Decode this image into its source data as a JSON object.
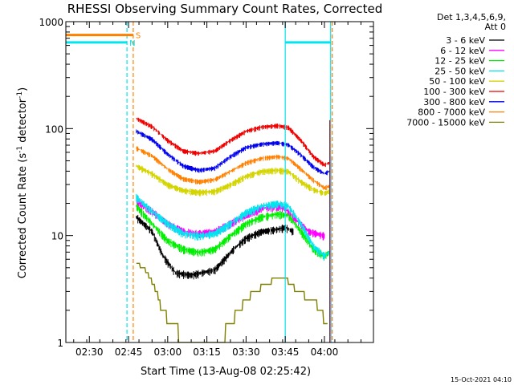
{
  "chart_data": {
    "type": "line",
    "title": "RHESSI Observing Summary Count Rates, Corrected",
    "xlabel": "Start Time (13-Aug-08 02:25:42)",
    "ylabel_main": "Corrected Count Rate (s",
    "ylabel_sup1": "-1",
    "ylabel_mid": " detector",
    "ylabel_sup2": "-1",
    "ylabel_end": ")",
    "yscale": "log",
    "ylim": [
      1,
      1000
    ],
    "xlim": [
      2.35,
      4.313
    ],
    "x_unit": "hours UT",
    "x_ticks": [
      {
        "value": 2.5,
        "label": "02:30"
      },
      {
        "value": 2.75,
        "label": "02:45"
      },
      {
        "value": 3.0,
        "label": "03:00"
      },
      {
        "value": 3.25,
        "label": "03:15"
      },
      {
        "value": 3.5,
        "label": "03:30"
      },
      {
        "value": 3.75,
        "label": "03:45"
      },
      {
        "value": 4.0,
        "label": "04:00"
      }
    ],
    "y_ticks": [
      {
        "value": 1,
        "label": "1"
      },
      {
        "value": 10,
        "label": "10"
      },
      {
        "value": 100,
        "label": "100"
      },
      {
        "value": 1000,
        "label": "1000"
      }
    ],
    "legend": {
      "header1": "Det 1,3,4,5,6,9,",
      "header2": "Att 0",
      "placement": "right-outside",
      "entries": [
        {
          "label": "3 - 6 keV",
          "color": "#000000"
        },
        {
          "label": "6 - 12 keV",
          "color": "#ff00ff"
        },
        {
          "label": "12 - 25 keV",
          "color": "#00ee00"
        },
        {
          "label": "25 - 50 keV",
          "color": "#00e5ee"
        },
        {
          "label": "50 - 100 keV",
          "color": "#d4d400"
        },
        {
          "label": "100 - 300 keV",
          "color": "#ee0000"
        },
        {
          "label": "300 - 800 keV",
          "color": "#0000ee"
        },
        {
          "label": "800 - 7000 keV",
          "color": "#ff8000"
        },
        {
          "label": "7000 - 15000 keV",
          "color": "#808000"
        }
      ]
    },
    "series": [
      {
        "name": "3 - 6 keV",
        "color": "#000000",
        "noise": 0.05,
        "points": [
          [
            2.8,
            15
          ],
          [
            2.9,
            11
          ],
          [
            2.97,
            6.5
          ],
          [
            3.05,
            4.5
          ],
          [
            3.15,
            4.3
          ],
          [
            3.3,
            4.8
          ],
          [
            3.42,
            7.5
          ],
          [
            3.5,
            9.5
          ],
          [
            3.6,
            11
          ],
          [
            3.7,
            11.5
          ],
          [
            3.75,
            12
          ],
          [
            3.8,
            11
          ]
        ]
      },
      {
        "name": "6 - 12 keV",
        "color": "#ff00ff",
        "noise": 0.05,
        "points": [
          [
            2.8,
            21
          ],
          [
            2.9,
            17
          ],
          [
            3.0,
            13
          ],
          [
            3.1,
            11
          ],
          [
            3.2,
            10.5
          ],
          [
            3.3,
            11
          ],
          [
            3.4,
            13
          ],
          [
            3.5,
            15.5
          ],
          [
            3.6,
            18
          ],
          [
            3.7,
            19
          ],
          [
            3.75,
            18
          ],
          [
            3.82,
            14
          ],
          [
            3.9,
            11
          ],
          [
            4.0,
            10
          ]
        ]
      },
      {
        "name": "12 - 25 keV",
        "color": "#00ee00",
        "noise": 0.05,
        "points": [
          [
            2.8,
            19
          ],
          [
            2.9,
            13
          ],
          [
            3.0,
            9
          ],
          [
            3.1,
            7.5
          ],
          [
            3.2,
            7
          ],
          [
            3.3,
            7.5
          ],
          [
            3.4,
            10
          ],
          [
            3.5,
            13
          ],
          [
            3.6,
            15
          ],
          [
            3.7,
            16
          ],
          [
            3.77,
            15.5
          ],
          [
            3.85,
            11
          ],
          [
            3.93,
            7.5
          ],
          [
            4.0,
            6.5
          ],
          [
            4.03,
            7
          ]
        ]
      },
      {
        "name": "25 - 50 keV",
        "color": "#00e5ee",
        "noise": 0.05,
        "points": [
          [
            2.8,
            23
          ],
          [
            2.9,
            17
          ],
          [
            3.0,
            13
          ],
          [
            3.1,
            10.5
          ],
          [
            3.2,
            10
          ],
          [
            3.3,
            10.5
          ],
          [
            3.4,
            13
          ],
          [
            3.5,
            16.5
          ],
          [
            3.6,
            19
          ],
          [
            3.7,
            20
          ],
          [
            3.77,
            19
          ],
          [
            3.85,
            13
          ],
          [
            3.93,
            8
          ],
          [
            4.0,
            6.5
          ],
          [
            4.03,
            7
          ]
        ]
      },
      {
        "name": "50 - 100 keV",
        "color": "#d4d400",
        "noise": 0.04,
        "points": [
          [
            2.8,
            45
          ],
          [
            2.9,
            38
          ],
          [
            3.0,
            30
          ],
          [
            3.1,
            26.5
          ],
          [
            3.2,
            25.5
          ],
          [
            3.3,
            26
          ],
          [
            3.4,
            30
          ],
          [
            3.5,
            36
          ],
          [
            3.6,
            40
          ],
          [
            3.7,
            41
          ],
          [
            3.77,
            40
          ],
          [
            3.85,
            32
          ],
          [
            3.93,
            27
          ],
          [
            4.0,
            25
          ],
          [
            4.03,
            26
          ]
        ]
      },
      {
        "name": "100 - 300 keV",
        "color": "#ee0000",
        "noise": 0.03,
        "points": [
          [
            2.8,
            125
          ],
          [
            2.9,
            105
          ],
          [
            3.0,
            78
          ],
          [
            3.1,
            62
          ],
          [
            3.2,
            59
          ],
          [
            3.3,
            62
          ],
          [
            3.4,
            78
          ],
          [
            3.5,
            95
          ],
          [
            3.6,
            104
          ],
          [
            3.7,
            107
          ],
          [
            3.77,
            103
          ],
          [
            3.85,
            78
          ],
          [
            3.93,
            55
          ],
          [
            4.0,
            46
          ],
          [
            4.03,
            48
          ]
        ]
      },
      {
        "name": "300 - 800 keV",
        "color": "#0000ee",
        "noise": 0.03,
        "points": [
          [
            2.8,
            95
          ],
          [
            2.9,
            80
          ],
          [
            3.0,
            58
          ],
          [
            3.1,
            45
          ],
          [
            3.2,
            41
          ],
          [
            3.3,
            43
          ],
          [
            3.4,
            55
          ],
          [
            3.5,
            67
          ],
          [
            3.6,
            72
          ],
          [
            3.7,
            74
          ],
          [
            3.77,
            71
          ],
          [
            3.85,
            57
          ],
          [
            3.93,
            44
          ],
          [
            4.0,
            38
          ],
          [
            4.03,
            40
          ]
        ]
      },
      {
        "name": "800 - 7000 keV",
        "color": "#ff8000",
        "noise": 0.03,
        "points": [
          [
            2.8,
            66
          ],
          [
            2.9,
            56
          ],
          [
            3.0,
            42
          ],
          [
            3.1,
            34
          ],
          [
            3.2,
            32
          ],
          [
            3.3,
            33.5
          ],
          [
            3.4,
            40
          ],
          [
            3.5,
            48
          ],
          [
            3.6,
            53
          ],
          [
            3.7,
            55
          ],
          [
            3.77,
            53
          ],
          [
            3.85,
            42
          ],
          [
            3.93,
            33
          ],
          [
            4.0,
            28
          ],
          [
            4.03,
            29
          ]
        ]
      },
      {
        "name": "7000 - 15000 keV",
        "color": "#808000",
        "step": true,
        "points": [
          [
            2.8,
            5.5
          ],
          [
            2.85,
            5
          ],
          [
            2.89,
            4
          ],
          [
            2.93,
            3
          ],
          [
            2.96,
            2.1
          ],
          [
            3.02,
            1.5
          ],
          [
            3.1,
            1.1
          ],
          [
            3.2,
            1
          ],
          [
            3.3,
            1
          ],
          [
            3.38,
            1.3
          ],
          [
            3.45,
            2
          ],
          [
            3.52,
            2.7
          ],
          [
            3.6,
            3.3
          ],
          [
            3.68,
            3.9
          ],
          [
            3.75,
            4
          ],
          [
            3.8,
            3.3
          ],
          [
            3.88,
            2.7
          ],
          [
            3.95,
            2.3
          ],
          [
            4.02,
            1.5
          ]
        ]
      }
    ],
    "flare_spikes": [
      {
        "x": 4.035,
        "y_top": 120,
        "color": "#ee0000"
      },
      {
        "x": 4.04,
        "y_top": 55,
        "color": "#0000ee"
      }
    ],
    "flags": [
      {
        "label": "S",
        "color": "#ff8000",
        "x_start": 2.35,
        "x_end": 2.78,
        "y": 750
      },
      {
        "label": "N",
        "color": "#00e5ee",
        "x_start": 2.35,
        "x_end": 2.74,
        "y": 640
      },
      {
        "label": "",
        "color": "#00e5ee",
        "x_start": 3.75,
        "x_end": 4.04,
        "y": 640
      }
    ],
    "vlines": [
      {
        "x": 2.74,
        "color": "#00e5ee",
        "dashed": true
      },
      {
        "x": 2.78,
        "color": "#ff8000",
        "dashed": true
      },
      {
        "x": 3.75,
        "color": "#00e5ee",
        "dashed": false
      },
      {
        "x": 4.04,
        "color": "#00e5ee",
        "dashed": false
      },
      {
        "x": 4.05,
        "color": "#ff8000",
        "dashed": true
      }
    ],
    "footer_timestamp": "15-Oct-2021 04:10"
  }
}
